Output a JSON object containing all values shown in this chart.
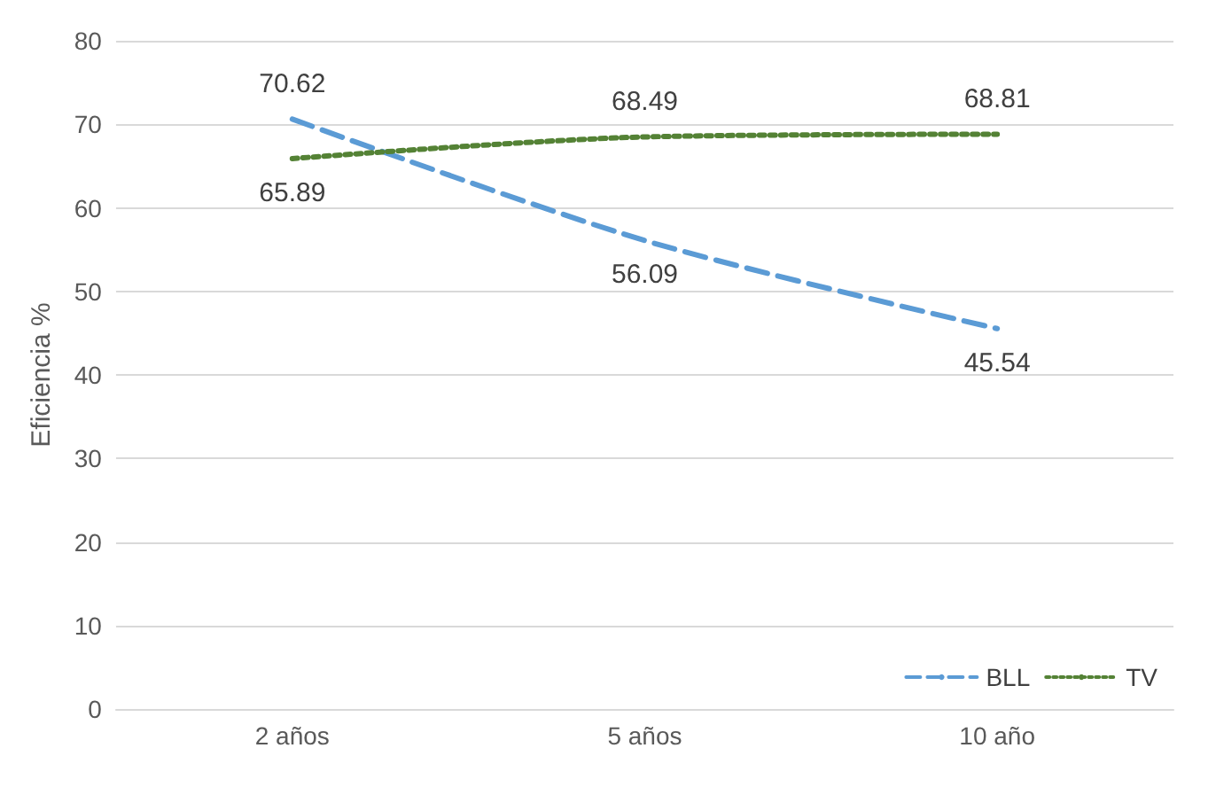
{
  "chart_data": {
    "type": "line",
    "ylabel": "Eficiencia %",
    "categories": [
      "2 años",
      "5 años",
      "10 año"
    ],
    "series": [
      {
        "name": "BLL",
        "color": "#5b9bd5",
        "line_style": "dashed",
        "values": [
          70.62,
          56.09,
          45.54
        ]
      },
      {
        "name": "TV",
        "color": "#548235",
        "line_style": "dotted",
        "values": [
          65.89,
          68.49,
          68.81
        ]
      }
    ],
    "ylim": [
      0,
      80
    ],
    "yticks": [
      0,
      10,
      20,
      30,
      40,
      50,
      60,
      70,
      80
    ],
    "grid": "y",
    "legend": "bottom right",
    "data_labels": true,
    "marker": "none"
  }
}
